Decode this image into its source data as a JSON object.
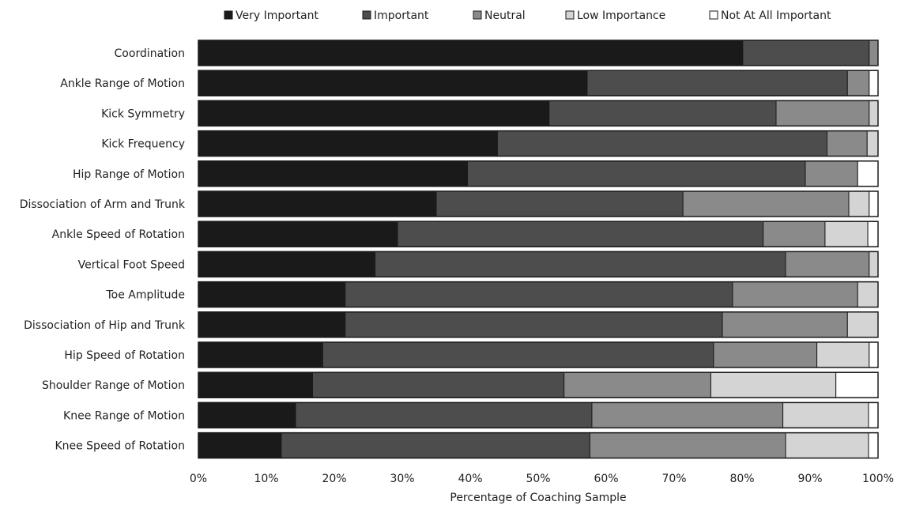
{
  "chart_data": {
    "type": "bar",
    "orientation": "horizontal",
    "stacked": true,
    "xlabel": "Percentage of Coaching Sample",
    "xlim": [
      0,
      100
    ],
    "xticks": [
      "0%",
      "10%",
      "20%",
      "30%",
      "40%",
      "50%",
      "60%",
      "70%",
      "80%",
      "90%",
      "100%"
    ],
    "grid": false,
    "legend_position": "top",
    "categories": [
      "Coordination",
      "Ankle Range of Motion",
      "Kick Symmetry",
      "Kick Frequency",
      "Hip Range of Motion",
      "Dissociation of Arm and Trunk",
      "Ankle Speed of Rotation",
      "Vertical Foot Speed",
      "Toe Amplitude",
      "Dissociation of Hip and Trunk",
      "Hip Speed of Rotation",
      "Shoulder Range of Motion",
      "Knee Range of Motion",
      "Knee Speed of Rotation"
    ],
    "series": [
      {
        "name": "Very Important",
        "color": "#1a1a1a",
        "values": [
          80.1,
          57.2,
          51.6,
          44.0,
          39.6,
          35.0,
          29.3,
          26.0,
          21.6,
          21.6,
          18.3,
          16.8,
          14.3,
          12.2
        ]
      },
      {
        "name": "Important",
        "color": "#4d4d4d",
        "values": [
          18.6,
          38.3,
          33.4,
          48.5,
          49.7,
          36.3,
          53.8,
          60.4,
          57.0,
          55.5,
          57.5,
          37.0,
          43.6,
          45.4
        ]
      },
      {
        "name": "Neutral",
        "color": "#8a8a8a",
        "values": [
          1.3,
          3.2,
          13.7,
          5.9,
          7.7,
          24.4,
          9.1,
          12.3,
          18.4,
          18.4,
          15.2,
          21.6,
          28.1,
          28.8
        ]
      },
      {
        "name": "Low Importance",
        "color": "#d4d4d4",
        "values": [
          0.0,
          0.0,
          1.3,
          1.6,
          0.0,
          3.0,
          6.3,
          1.3,
          3.0,
          4.5,
          7.7,
          18.4,
          12.6,
          12.2
        ]
      },
      {
        "name": "Not At All Important",
        "color": "#ffffff",
        "values": [
          0.0,
          1.3,
          0.0,
          0.0,
          3.0,
          1.3,
          1.5,
          0.0,
          0.0,
          0.0,
          1.3,
          6.2,
          1.4,
          1.4
        ]
      }
    ]
  }
}
